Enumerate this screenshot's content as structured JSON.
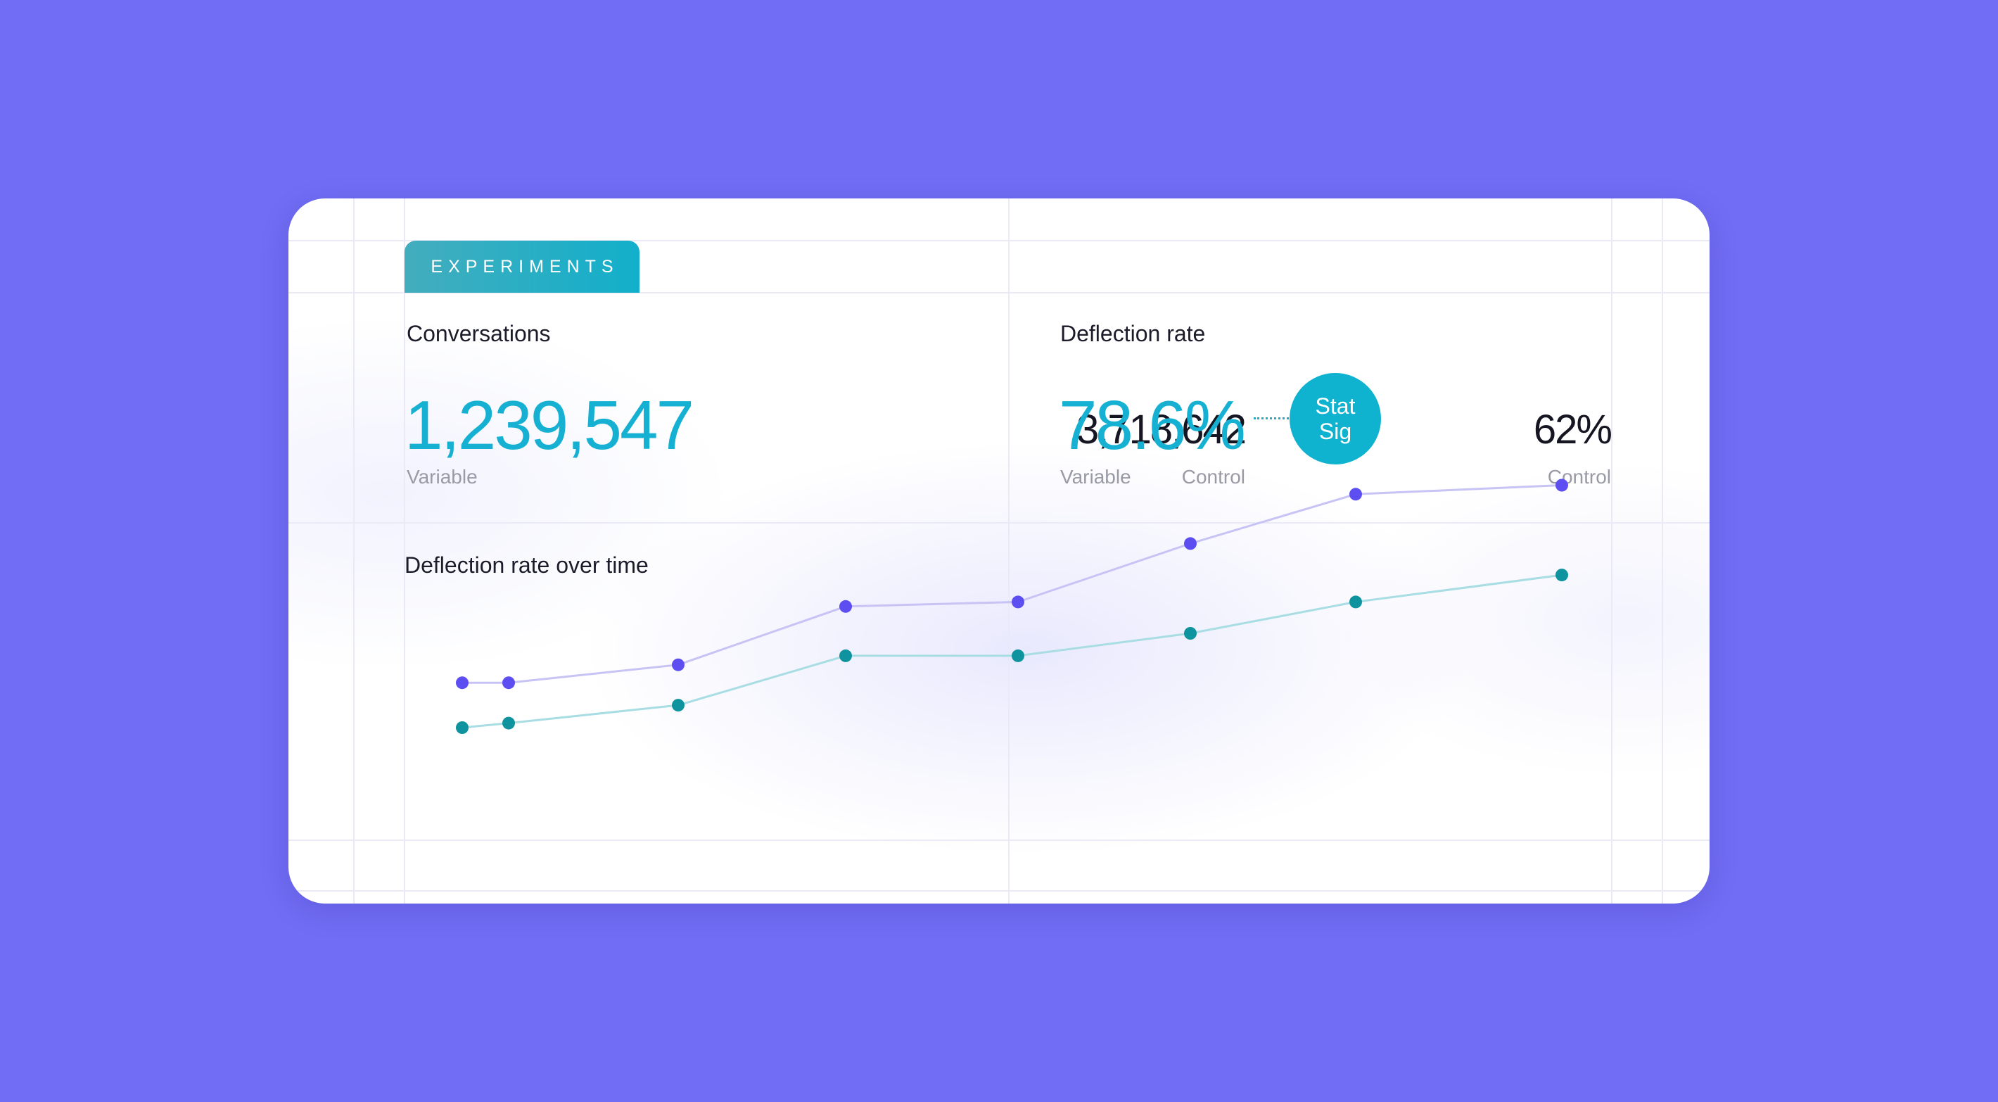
{
  "tab": {
    "label": "EXPERIMENTS"
  },
  "conversations": {
    "title": "Conversations",
    "variable_value": "1,239,547",
    "variable_label": "Variable",
    "control_value": "3,718,642",
    "control_label": "Control"
  },
  "deflection": {
    "title": "Deflection rate",
    "variable_value": "78.6%",
    "variable_label": "Variable",
    "badge_line1": "Stat",
    "badge_line2": "Sig",
    "control_value": "62%",
    "control_label": "Control"
  },
  "chart_title": "Deflection rate over time",
  "colors": {
    "background": "#716df4",
    "accent_teal": "#16b1d2",
    "variable_series": "#5d4ef2",
    "control_series": "#0f939e"
  },
  "chart_data": {
    "type": "line",
    "title": "Deflection rate over time",
    "xlabel": "",
    "ylabel": "",
    "ylim": [
      0,
      100
    ],
    "grid": false,
    "x": [
      1,
      2,
      3,
      4,
      5,
      6,
      7,
      8
    ],
    "series": [
      {
        "role": "variable",
        "color": "#5d4ef2",
        "line_color": "#c7c3f5",
        "values": [
          31,
          31,
          35,
          48,
          49,
          62,
          73,
          75
        ]
      },
      {
        "role": "control",
        "color": "#0f939e",
        "line_color": "#a8dde3",
        "values": [
          21,
          22,
          26,
          37,
          37,
          42,
          49,
          55
        ]
      }
    ]
  }
}
